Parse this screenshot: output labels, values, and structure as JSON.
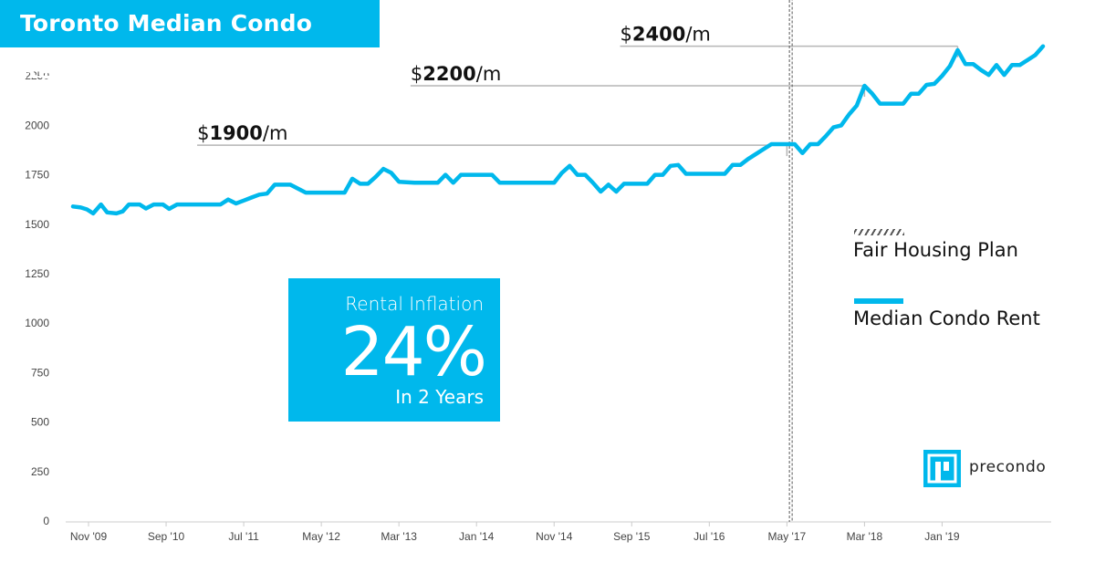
{
  "title": "Toronto Median Condo Rent",
  "chart_data": {
    "type": "line",
    "title": "Toronto Median Condo Rent",
    "xlabel": "",
    "ylabel": "",
    "ylim": [
      0,
      2500
    ],
    "y_ticks": [
      0,
      250,
      500,
      750,
      1000,
      1250,
      1500,
      1750,
      2000,
      2250
    ],
    "x_ticks": [
      {
        "label": "Nov '09",
        "x": 2
      },
      {
        "label": "Sep '10",
        "x": 12
      },
      {
        "label": "Jul '11",
        "x": 22
      },
      {
        "label": "May '12",
        "x": 32
      },
      {
        "label": "Mar '13",
        "x": 42
      },
      {
        "label": "Jan '14",
        "x": 52
      },
      {
        "label": "Nov '14",
        "x": 62
      },
      {
        "label": "Sep '15",
        "x": 72
      },
      {
        "label": "Jul '16",
        "x": 82
      },
      {
        "label": "May '17",
        "x": 92
      },
      {
        "label": "Mar '18",
        "x": 102
      },
      {
        "label": "Jan '19",
        "x": 112
      }
    ],
    "series": [
      {
        "name": "Median Condo Rent",
        "color": "#00b8ec",
        "points": [
          [
            0,
            1590
          ],
          [
            1,
            1585
          ],
          [
            1.8,
            1575
          ],
          [
            2.6,
            1555
          ],
          [
            3.6,
            1600
          ],
          [
            4.4,
            1560
          ],
          [
            5.6,
            1555
          ],
          [
            6.4,
            1565
          ],
          [
            7.2,
            1600
          ],
          [
            8.6,
            1600
          ],
          [
            9.4,
            1580
          ],
          [
            10.4,
            1600
          ],
          [
            11.6,
            1600
          ],
          [
            12.4,
            1578
          ],
          [
            13.4,
            1600
          ],
          [
            15,
            1600
          ],
          [
            16,
            1600
          ],
          [
            18,
            1600
          ],
          [
            19,
            1600
          ],
          [
            20,
            1625
          ],
          [
            21,
            1605
          ],
          [
            22,
            1620
          ],
          [
            23,
            1635
          ],
          [
            24,
            1650
          ],
          [
            25,
            1655
          ],
          [
            26,
            1700
          ],
          [
            28,
            1700
          ],
          [
            29,
            1680
          ],
          [
            30,
            1660
          ],
          [
            32,
            1660
          ],
          [
            34,
            1660
          ],
          [
            35,
            1660
          ],
          [
            36,
            1730
          ],
          [
            37,
            1705
          ],
          [
            38,
            1705
          ],
          [
            39,
            1740
          ],
          [
            40,
            1780
          ],
          [
            41,
            1760
          ],
          [
            42,
            1715
          ],
          [
            44,
            1710
          ],
          [
            46,
            1710
          ],
          [
            47,
            1710
          ],
          [
            48,
            1750
          ],
          [
            49,
            1710
          ],
          [
            50,
            1750
          ],
          [
            52,
            1750
          ],
          [
            54,
            1750
          ],
          [
            55,
            1710
          ],
          [
            57,
            1710
          ],
          [
            59,
            1710
          ],
          [
            61,
            1710
          ],
          [
            62,
            1710
          ],
          [
            63,
            1760
          ],
          [
            64,
            1795
          ],
          [
            65,
            1750
          ],
          [
            66,
            1750
          ],
          [
            67,
            1710
          ],
          [
            68,
            1665
          ],
          [
            69,
            1700
          ],
          [
            70,
            1665
          ],
          [
            71,
            1705
          ],
          [
            72,
            1705
          ],
          [
            74,
            1705
          ],
          [
            75,
            1750
          ],
          [
            76,
            1750
          ],
          [
            77,
            1795
          ],
          [
            78,
            1800
          ],
          [
            79,
            1755
          ],
          [
            81,
            1755
          ],
          [
            83,
            1755
          ],
          [
            84,
            1755
          ],
          [
            85,
            1800
          ],
          [
            86,
            1800
          ],
          [
            87,
            1830
          ],
          [
            88,
            1855
          ],
          [
            89,
            1880
          ],
          [
            90,
            1905
          ],
          [
            91,
            1905
          ],
          [
            92,
            1905
          ],
          [
            93,
            1905
          ],
          [
            94,
            1860
          ],
          [
            95,
            1905
          ],
          [
            96,
            1905
          ],
          [
            97,
            1945
          ],
          [
            98,
            1990
          ],
          [
            99,
            2000
          ],
          [
            100,
            2055
          ],
          [
            101,
            2100
          ],
          [
            102,
            2200
          ],
          [
            103,
            2160
          ],
          [
            104,
            2110
          ],
          [
            105,
            2110
          ],
          [
            106,
            2110
          ],
          [
            107,
            2110
          ],
          [
            108,
            2160
          ],
          [
            109,
            2160
          ],
          [
            110,
            2205
          ],
          [
            111,
            2210
          ],
          [
            112,
            2250
          ],
          [
            113,
            2300
          ],
          [
            114,
            2380
          ],
          [
            115,
            2310
          ],
          [
            116,
            2310
          ],
          [
            117,
            2280
          ],
          [
            118,
            2255
          ],
          [
            119,
            2305
          ],
          [
            120,
            2255
          ],
          [
            121,
            2305
          ],
          [
            122,
            2305
          ],
          [
            123,
            2330
          ],
          [
            124,
            2355
          ],
          [
            125,
            2400
          ]
        ]
      }
    ],
    "annotations": [
      {
        "prefix": "$",
        "value": "1900",
        "suffix": "/m",
        "y": 1900,
        "x_start": 16,
        "x_end": 92
      },
      {
        "prefix": "$",
        "value": "2200",
        "suffix": "/m",
        "y": 2200,
        "x_start": 43.5,
        "x_end": 102
      },
      {
        "prefix": "$",
        "value": "2400",
        "suffix": "/m",
        "y": 2400,
        "x_start": 70.5,
        "x_end": 114
      }
    ],
    "event_line": {
      "name": "Fair Housing Plan",
      "x": 92.5
    },
    "legend": [
      "Fair Housing Plan",
      "Median Condo Rent"
    ],
    "legend_position": "right",
    "grid": false
  },
  "inflation_box": {
    "label": "Rental Inflation",
    "value": "24%",
    "sub": "In 2 Years"
  },
  "legend": {
    "fair_housing": "Fair Housing Plan",
    "median_rent": "Median Condo Rent"
  },
  "brand": {
    "name": "precondo",
    "color": "#00b8ec"
  }
}
